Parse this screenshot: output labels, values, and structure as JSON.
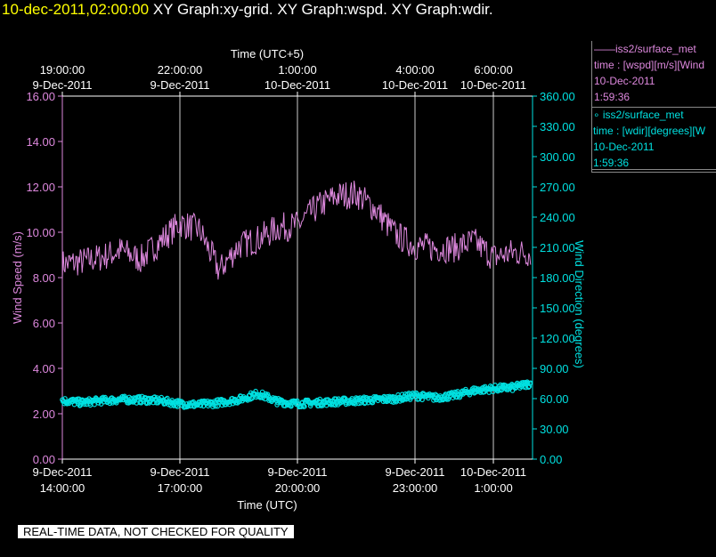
{
  "header": {
    "time": "10-dec-2011,02:00:00",
    "graphs": "XY Graph:xy-grid.  XY Graph:wspd.  XY Graph:wdir."
  },
  "legend": {
    "wspd": {
      "line1": "——iss2/surface_met",
      "line2": "time : [wspd][m/s][Wind",
      "line3": "10-Dec-2011",
      "line4": "1:59:36"
    },
    "wdir": {
      "line1": "∘ iss2/surface_met",
      "line2": "time : [wdir][degrees][W",
      "line3": "10-Dec-2011",
      "line4": "1:59:36"
    }
  },
  "footer": {
    "quality_notice": "REAL-TIME DATA, NOT CHECKED FOR QUALITY"
  },
  "colors": {
    "wspd": "#dd88dd",
    "wdir": "#00e0e0",
    "grid": "#ffffff"
  },
  "chart_data": {
    "type": "line",
    "xlabel": "Time (UTC)",
    "x2label": "Time (UTC+5)",
    "x_ticks_bottom": [
      {
        "date": "9-Dec-2011",
        "time": "14:00:00"
      },
      {
        "date": "9-Dec-2011",
        "time": "17:00:00"
      },
      {
        "date": "9-Dec-2011",
        "time": "20:00:00"
      },
      {
        "date": "9-Dec-2011",
        "time": "23:00:00"
      },
      {
        "date": "10-Dec-2011",
        "time": "1:00:00"
      }
    ],
    "x_ticks_top": [
      {
        "time": "19:00:00",
        "date": "9-Dec-2011"
      },
      {
        "time": "22:00:00",
        "date": "9-Dec-2011"
      },
      {
        "time": "1:00:00",
        "date": "10-Dec-2011"
      },
      {
        "time": "4:00:00",
        "date": "10-Dec-2011"
      },
      {
        "time": "6:00:00",
        "date": "10-Dec-2011"
      }
    ],
    "x_hours_utc": [
      14,
      17,
      20,
      23,
      25
    ],
    "x_range_hours_utc": [
      14,
      26
    ],
    "ylabel": "Wind Speed (m/s)",
    "y2label": "Wind Direction (degrees)",
    "ylim": [
      0,
      16
    ],
    "y2lim": [
      0,
      360
    ],
    "yticks": [
      "0.00",
      "2.00",
      "4.00",
      "6.00",
      "8.00",
      "10.00",
      "12.00",
      "14.00",
      "16.00"
    ],
    "y2ticks": [
      "0.00",
      "30.00",
      "60.00",
      "90.00",
      "120.00",
      "150.00",
      "180.00",
      "210.00",
      "240.00",
      "270.00",
      "300.00",
      "330.00",
      "360.00"
    ],
    "grid": true,
    "series": [
      {
        "name": "iss2/surface_met wspd",
        "axis": "left",
        "style": "line",
        "x": [
          14.0,
          14.5,
          15.0,
          15.5,
          16.0,
          16.5,
          17.0,
          17.5,
          18.0,
          18.5,
          19.0,
          19.5,
          20.0,
          20.5,
          21.0,
          21.5,
          22.0,
          22.5,
          23.0,
          23.5,
          24.0,
          24.5,
          25.0,
          25.5,
          25.95
        ],
        "y": [
          8.6,
          8.7,
          8.9,
          9.2,
          8.8,
          9.6,
          10.4,
          10.1,
          8.3,
          9.4,
          9.7,
          10.2,
          10.3,
          11.1,
          11.6,
          11.7,
          11.0,
          9.9,
          9.4,
          9.3,
          9.3,
          9.6,
          8.9,
          9.1,
          9.1
        ]
      },
      {
        "name": "iss2/surface_met wdir",
        "axis": "right",
        "style": "points",
        "x": [
          14.0,
          14.5,
          15.0,
          15.5,
          16.0,
          16.5,
          17.0,
          17.5,
          18.0,
          18.5,
          19.0,
          19.5,
          20.0,
          20.5,
          21.0,
          21.5,
          22.0,
          22.5,
          23.0,
          23.5,
          24.0,
          24.5,
          25.0,
          25.5,
          25.95
        ],
        "y": [
          58,
          56,
          58,
          59,
          59,
          58,
          55,
          54,
          56,
          59,
          65,
          57,
          55,
          56,
          57,
          58,
          59,
          60,
          63,
          61,
          63,
          68,
          70,
          71,
          75
        ]
      }
    ]
  }
}
